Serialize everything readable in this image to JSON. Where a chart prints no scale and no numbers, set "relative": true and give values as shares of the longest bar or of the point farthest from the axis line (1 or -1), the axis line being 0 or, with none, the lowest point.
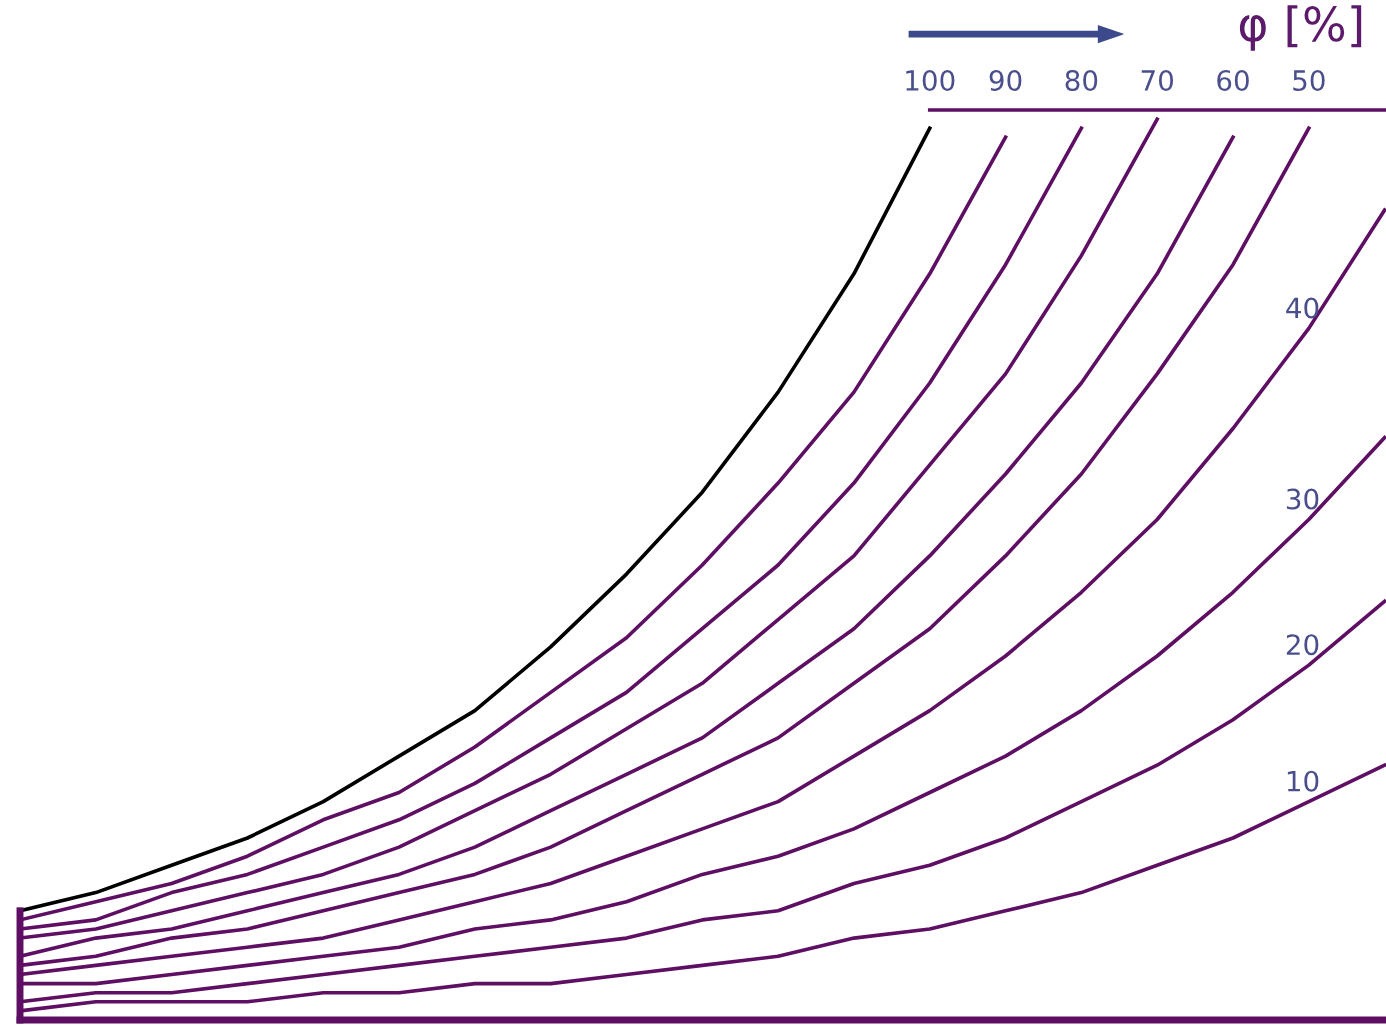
{
  "chart_data": {
    "type": "line",
    "title": "φ [%]",
    "relative": true,
    "legend": false,
    "grid": false,
    "marker": "none",
    "line_style": "solid",
    "categories": [
      null,
      null,
      null,
      null,
      null,
      null,
      null,
      null,
      null,
      null,
      null,
      null,
      null,
      null,
      null,
      null,
      null,
      null,
      null
    ],
    "series": [
      {
        "name": "100",
        "color": "#000000",
        "values": [
          0.12,
          0.14,
          0.17,
          0.2,
          0.24,
          0.29,
          0.34,
          0.41,
          0.49,
          0.58,
          0.69,
          0.82,
          0.98,
          null,
          null,
          null,
          null,
          null,
          null
        ]
      },
      {
        "name": "90",
        "color": "#5e0f63",
        "values": [
          0.11,
          0.13,
          0.15,
          0.18,
          0.22,
          0.25,
          0.3,
          0.36,
          0.42,
          0.5,
          0.59,
          0.69,
          0.82,
          0.97,
          null,
          null,
          null,
          null,
          null
        ]
      },
      {
        "name": "80",
        "color": "#5e0f63",
        "values": [
          0.1,
          0.11,
          0.14,
          0.16,
          0.19,
          0.22,
          0.26,
          0.31,
          0.36,
          0.43,
          0.5,
          0.59,
          0.7,
          0.83,
          0.98,
          null,
          null,
          null,
          null
        ]
      },
      {
        "name": "70",
        "color": "#5e0f63",
        "values": [
          0.09,
          0.1,
          0.12,
          0.14,
          0.16,
          0.19,
          0.23,
          0.27,
          0.32,
          0.37,
          0.44,
          0.51,
          0.61,
          0.71,
          0.84,
          0.99,
          null,
          null,
          null
        ]
      },
      {
        "name": "60",
        "color": "#5e0f63",
        "values": [
          0.07,
          0.09,
          0.1,
          0.12,
          0.14,
          0.16,
          0.19,
          0.23,
          0.27,
          0.31,
          0.37,
          0.43,
          0.51,
          0.6,
          0.7,
          0.82,
          0.97,
          null,
          null
        ]
      },
      {
        "name": "50",
        "color": "#5e0f63",
        "values": [
          0.06,
          0.07,
          0.09,
          0.1,
          0.12,
          0.14,
          0.16,
          0.19,
          0.23,
          0.27,
          0.31,
          0.37,
          0.43,
          0.51,
          0.6,
          0.71,
          0.83,
          0.98,
          null
        ]
      },
      {
        "name": "40",
        "color": "#5e0f63",
        "values": [
          0.05,
          0.06,
          0.07,
          0.08,
          0.09,
          0.11,
          0.13,
          0.15,
          0.18,
          0.21,
          0.24,
          0.29,
          0.34,
          0.4,
          0.47,
          0.55,
          0.65,
          0.76,
          0.89
        ]
      },
      {
        "name": "30",
        "color": "#5e0f63",
        "values": [
          0.04,
          0.04,
          0.05,
          0.06,
          0.07,
          0.08,
          0.1,
          0.11,
          0.13,
          0.16,
          0.18,
          0.21,
          0.25,
          0.29,
          0.34,
          0.4,
          0.47,
          0.55,
          0.64
        ]
      },
      {
        "name": "20",
        "color": "#5e0f63",
        "values": [
          0.02,
          0.03,
          0.03,
          0.04,
          0.05,
          0.06,
          0.07,
          0.08,
          0.09,
          0.11,
          0.12,
          0.15,
          0.17,
          0.2,
          0.24,
          0.28,
          0.33,
          0.39,
          0.46
        ]
      },
      {
        "name": "10",
        "color": "#5e0f63",
        "values": [
          0.01,
          0.02,
          0.02,
          0.02,
          0.03,
          0.03,
          0.04,
          0.04,
          0.05,
          0.06,
          0.07,
          0.09,
          0.1,
          0.12,
          0.14,
          0.17,
          0.2,
          0.24,
          0.28
        ]
      },
      {
        "color": "#5e0f63",
        "values": [
          null,
          null,
          null,
          null,
          null,
          null,
          null,
          null,
          null,
          null,
          null,
          null,
          1,
          1,
          1,
          1,
          1,
          1,
          1
        ]
      }
    ]
  }
}
